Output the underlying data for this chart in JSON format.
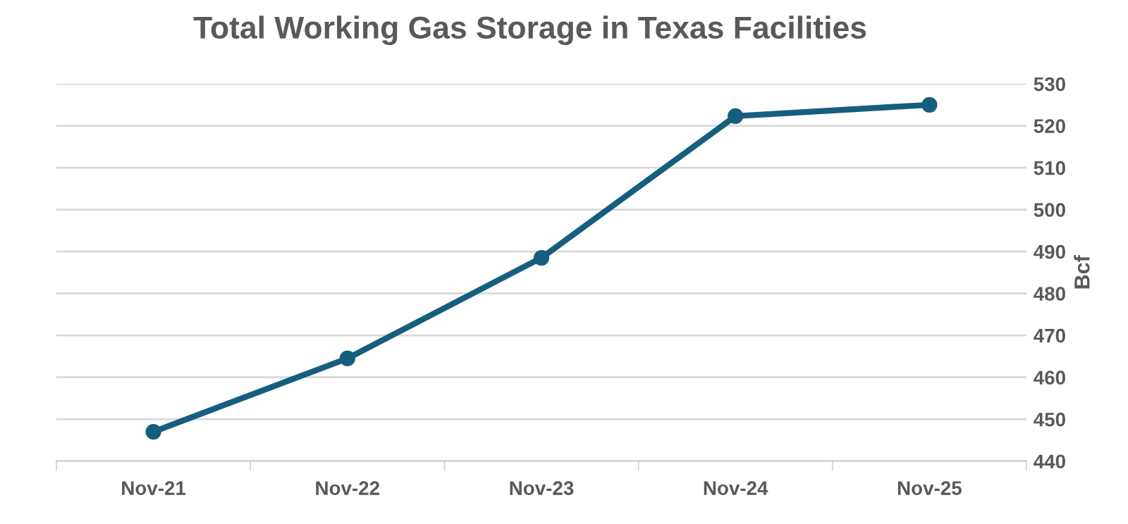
{
  "chart_data": {
    "type": "line",
    "title": "Total Working Gas Storage in Texas Facilities",
    "ylabel": "Bcf",
    "categories": [
      "Nov-21",
      "Nov-22",
      "Nov-23",
      "Nov-24",
      "Nov-25"
    ],
    "series": [
      {
        "color": "#165e7e",
        "values": [
          447,
          464.5,
          488.5,
          522.3,
          525
        ]
      }
    ],
    "ylim": [
      440,
      530
    ],
    "yticks": [
      440,
      450,
      460,
      470,
      480,
      490,
      500,
      510,
      520,
      530
    ],
    "grid": "y",
    "marker": "circle",
    "line_style": "solid"
  }
}
